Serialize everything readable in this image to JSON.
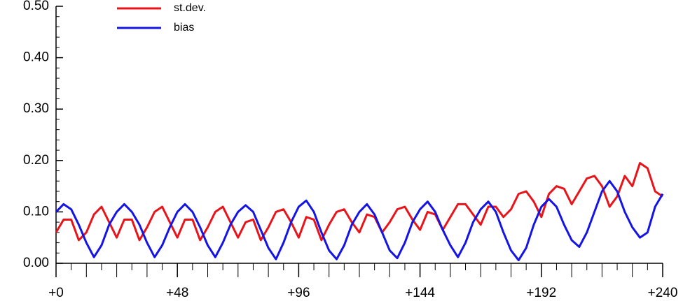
{
  "chart_data": {
    "type": "line",
    "x": [
      0,
      3,
      6,
      9,
      12,
      15,
      18,
      21,
      24,
      27,
      30,
      33,
      36,
      39,
      42,
      45,
      48,
      51,
      54,
      57,
      60,
      63,
      66,
      69,
      72,
      75,
      78,
      81,
      84,
      87,
      90,
      93,
      96,
      99,
      102,
      105,
      108,
      111,
      114,
      117,
      120,
      123,
      126,
      129,
      132,
      135,
      138,
      141,
      144,
      147,
      150,
      153,
      156,
      159,
      162,
      165,
      168,
      171,
      174,
      177,
      180,
      183,
      186,
      189,
      192,
      195,
      198,
      201,
      204,
      207,
      210,
      213,
      216,
      219,
      222,
      225,
      228,
      231,
      234,
      237,
      240
    ],
    "series": [
      {
        "name": "st.dev.",
        "color": "#e8141a",
        "values": [
          0.06,
          0.085,
          0.085,
          0.045,
          0.06,
          0.095,
          0.11,
          0.08,
          0.05,
          0.085,
          0.085,
          0.045,
          0.07,
          0.1,
          0.11,
          0.08,
          0.05,
          0.085,
          0.085,
          0.045,
          0.07,
          0.1,
          0.11,
          0.08,
          0.05,
          0.08,
          0.085,
          0.045,
          0.07,
          0.1,
          0.105,
          0.08,
          0.05,
          0.09,
          0.085,
          0.045,
          0.075,
          0.1,
          0.105,
          0.08,
          0.06,
          0.095,
          0.09,
          0.06,
          0.08,
          0.105,
          0.11,
          0.085,
          0.065,
          0.1,
          0.095,
          0.065,
          0.09,
          0.115,
          0.115,
          0.095,
          0.075,
          0.11,
          0.11,
          0.09,
          0.105,
          0.135,
          0.14,
          0.12,
          0.09,
          0.135,
          0.15,
          0.145,
          0.115,
          0.14,
          0.165,
          0.17,
          0.15,
          0.11,
          0.13,
          0.17,
          0.15,
          0.195,
          0.185,
          0.14,
          0.13
        ]
      },
      {
        "name": "bias",
        "color": "#1414e6",
        "values": [
          0.1,
          0.115,
          0.105,
          0.075,
          0.04,
          0.012,
          0.035,
          0.075,
          0.1,
          0.115,
          0.1,
          0.075,
          0.04,
          0.012,
          0.035,
          0.07,
          0.1,
          0.115,
          0.1,
          0.07,
          0.035,
          0.012,
          0.04,
          0.075,
          0.1,
          0.113,
          0.1,
          0.065,
          0.03,
          0.008,
          0.04,
          0.08,
          0.11,
          0.122,
          0.1,
          0.06,
          0.025,
          0.008,
          0.035,
          0.075,
          0.1,
          0.115,
          0.095,
          0.06,
          0.025,
          0.01,
          0.04,
          0.08,
          0.105,
          0.12,
          0.1,
          0.065,
          0.035,
          0.012,
          0.04,
          0.08,
          0.105,
          0.12,
          0.1,
          0.06,
          0.025,
          0.006,
          0.03,
          0.075,
          0.11,
          0.125,
          0.11,
          0.075,
          0.045,
          0.032,
          0.06,
          0.1,
          0.14,
          0.16,
          0.14,
          0.1,
          0.07,
          0.05,
          0.06,
          0.11,
          0.135
        ]
      }
    ],
    "xlim": [
      0,
      240
    ],
    "xticks": [
      {
        "value": 0,
        "label": "+0"
      },
      {
        "value": 48,
        "label": "+48"
      },
      {
        "value": 96,
        "label": "+96"
      },
      {
        "value": 144,
        "label": "+144"
      },
      {
        "value": 192,
        "label": "+192"
      },
      {
        "value": 240,
        "label": "+240"
      }
    ],
    "ylim": [
      0,
      0.5
    ],
    "yticks": [
      {
        "value": 0,
        "label": "0.00"
      },
      {
        "value": 0.1,
        "label": "0.10"
      },
      {
        "value": 0.2,
        "label": "0.20"
      },
      {
        "value": 0.3,
        "label": "0.30"
      },
      {
        "value": 0.4,
        "label": "0.40"
      },
      {
        "value": 0.5,
        "label": "0.50"
      }
    ]
  }
}
